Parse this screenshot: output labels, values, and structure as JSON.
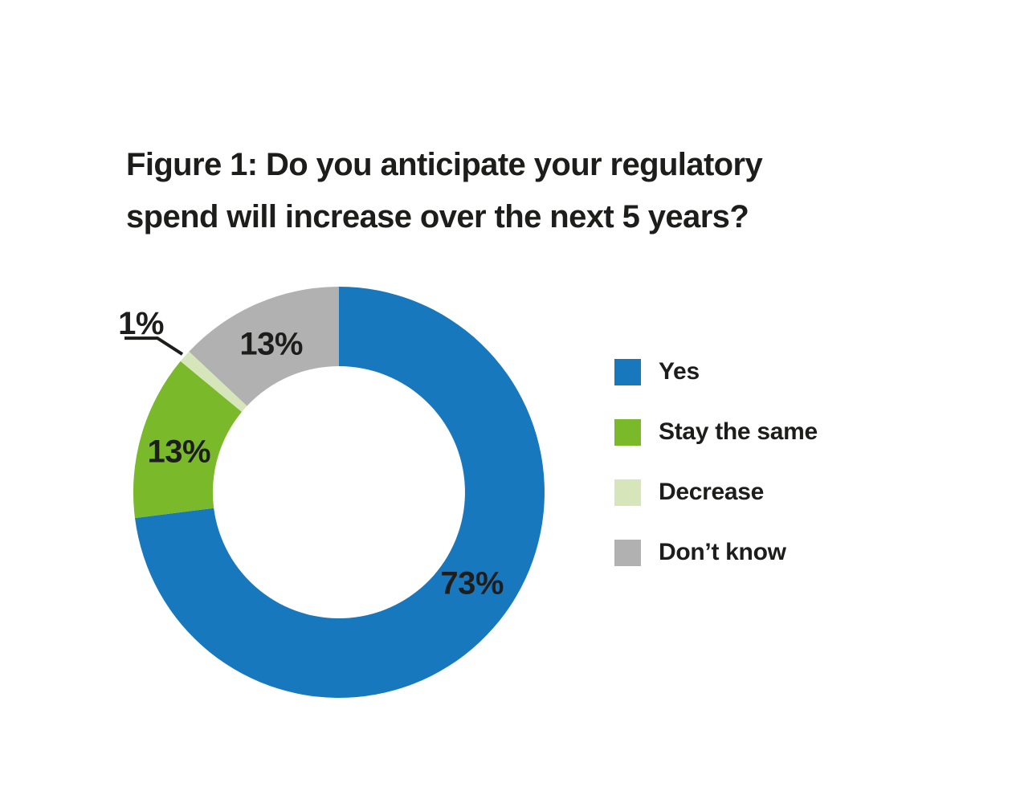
{
  "chart_data": {
    "type": "pie",
    "variant": "donut",
    "title": "Figure 1: Do you anticipate your regulatory spend will increase over the next 5 years?",
    "title_lines": [
      "Figure 1: Do you anticipate your regulatory",
      "spend will increase over the next 5 years?"
    ],
    "categories": [
      "Yes",
      "Stay the same",
      "Decrease",
      "Don’t know"
    ],
    "values": [
      73,
      13,
      1,
      13
    ],
    "unit": "%",
    "labels": [
      "73%",
      "13%",
      "1%",
      "13%"
    ],
    "label_placement": [
      "inside",
      "inside",
      "callout",
      "inside"
    ],
    "colors": [
      "#1878BE",
      "#7AB929",
      "#D6E5BA",
      "#B1B1B1"
    ],
    "text_color": "#1D1D1B",
    "start_angle_deg": 0,
    "direction": "clockwise",
    "donut_hole_ratio": 0.61,
    "legend_position": "right",
    "background": "#FFFFFF"
  }
}
